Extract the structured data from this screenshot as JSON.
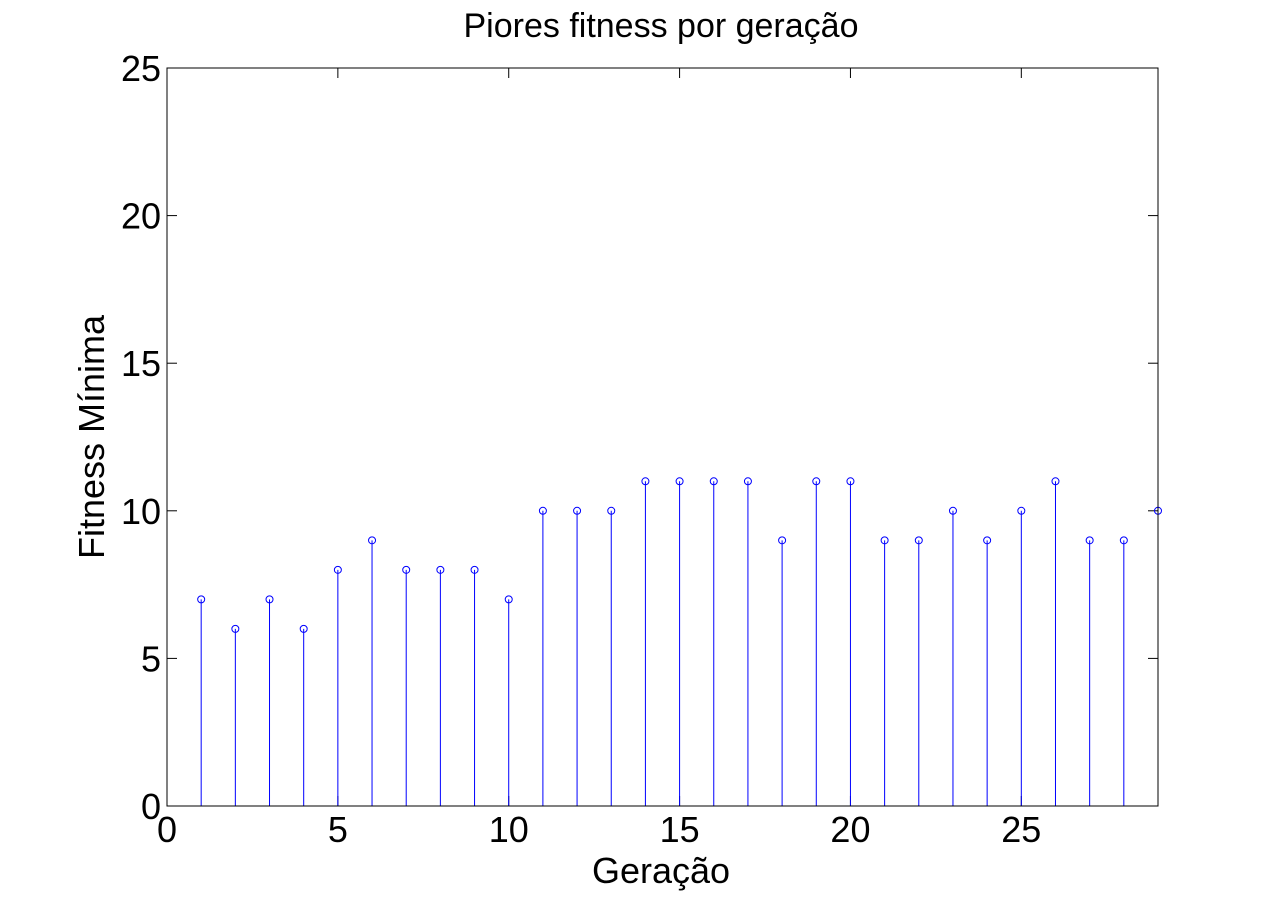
{
  "chart_data": {
    "type": "stem",
    "title": "Piores fitness por geração",
    "xlabel": "Geração",
    "ylabel": "Fitness Mínima",
    "xlim": [
      0,
      29
    ],
    "ylim": [
      0,
      25
    ],
    "xticks": [
      0,
      5,
      10,
      15,
      20,
      25
    ],
    "yticks": [
      0,
      5,
      10,
      15,
      20,
      25
    ],
    "grid": false,
    "colors": {
      "stem": "#0000ff",
      "axes": "#000000",
      "background": "#ffffff"
    },
    "x": [
      1,
      2,
      3,
      4,
      5,
      6,
      7,
      8,
      9,
      10,
      11,
      12,
      13,
      14,
      15,
      16,
      17,
      18,
      19,
      20,
      21,
      22,
      23,
      24,
      25,
      26,
      27,
      28,
      29
    ],
    "values": [
      7,
      6,
      7,
      6,
      8,
      9,
      8,
      8,
      8,
      7,
      10,
      10,
      10,
      11,
      11,
      11,
      11,
      9,
      11,
      11,
      9,
      9,
      10,
      9,
      10,
      11,
      9,
      9,
      10
    ]
  }
}
